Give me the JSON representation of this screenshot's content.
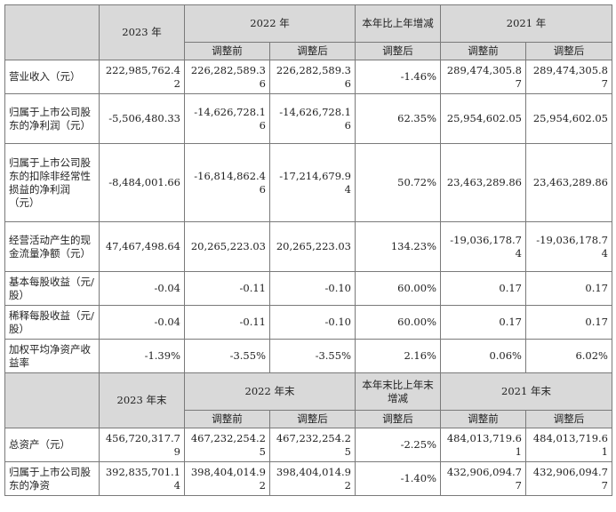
{
  "header1": {
    "y2023": "2023 年",
    "y2022": "2022 年",
    "yoy": "本年比上年增减",
    "y2021": "2021 年",
    "before": "调整前",
    "after": "调整后",
    "after_yoy": "调整后"
  },
  "rows1": [
    {
      "label": "营业收入（元）",
      "v2023": "222,985,762.42",
      "v2022b": "226,282,589.36",
      "v2022a": "226,282,589.36",
      "yoy": "-1.46%",
      "v2021b": "289,474,305.87",
      "v2021a": "289,474,305.87"
    },
    {
      "label": "归属于上市公司股东的净利润（元）",
      "v2023": "-5,506,480.33",
      "v2022b": "-14,626,728.16",
      "v2022a": "-14,626,728.16",
      "yoy": "62.35%",
      "v2021b": "25,954,602.05",
      "v2021a": "25,954,602.05"
    },
    {
      "label": "归属于上市公司股东的扣除非经常性损益的净利润（元）",
      "v2023": "-8,484,001.66",
      "v2022b": "-16,814,862.46",
      "v2022a": "-17,214,679.94",
      "yoy": "50.72%",
      "v2021b": "23,463,289.86",
      "v2021a": "23,463,289.86"
    },
    {
      "label": "经营活动产生的现金流量净额（元）",
      "v2023": "47,467,498.64",
      "v2022b": "20,265,223.03",
      "v2022a": "20,265,223.03",
      "yoy": "134.23%",
      "v2021b": "-19,036,178.74",
      "v2021a": "-19,036,178.74"
    },
    {
      "label": "基本每股收益（元/股）",
      "v2023": "-0.04",
      "v2022b": "-0.11",
      "v2022a": "-0.10",
      "yoy": "60.00%",
      "v2021b": "0.17",
      "v2021a": "0.17"
    },
    {
      "label": "稀释每股收益（元/股）",
      "v2023": "-0.04",
      "v2022b": "-0.11",
      "v2022a": "-0.10",
      "yoy": "60.00%",
      "v2021b": "0.17",
      "v2021a": "0.17"
    },
    {
      "label": "加权平均净资产收益率",
      "v2023": "-1.39%",
      "v2022b": "-3.55%",
      "v2022a": "-3.55%",
      "yoy": "2.16%",
      "v2021b": "0.06%",
      "v2021a": "6.02%"
    }
  ],
  "header2": {
    "y2023": "2023 年末",
    "y2022": "2022 年末",
    "yoy": "本年末比上年末增减",
    "y2021": "2021 年末",
    "before": "调整前",
    "after": "调整后",
    "after_yoy": "调整后"
  },
  "rows2": [
    {
      "label": "总资产（元）",
      "v2023": "456,720,317.79",
      "v2022b": "467,232,254.25",
      "v2022a": "467,232,254.25",
      "yoy": "-2.25%",
      "v2021b": "484,013,719.61",
      "v2021a": "484,013,719.61"
    },
    {
      "label": "归属于上市公司股东的净资",
      "v2023": "392,835,701.14",
      "v2022b": "398,404,014.92",
      "v2022a": "398,404,014.92",
      "yoy": "-1.40%",
      "v2021b": "432,906,094.77",
      "v2021a": "432,906,094.77"
    }
  ]
}
